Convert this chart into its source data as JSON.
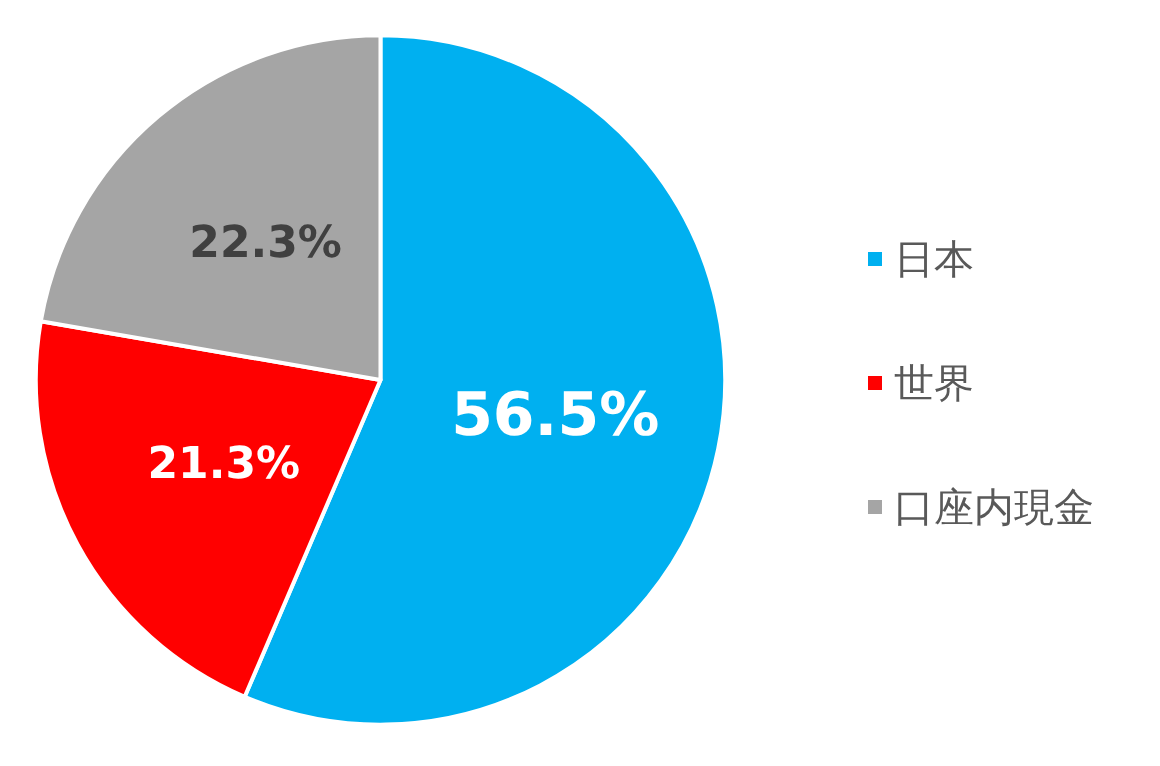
{
  "chart_data": {
    "type": "pie",
    "categories": [
      "日本",
      "世界",
      "口座内現金"
    ],
    "values": [
      56.5,
      21.3,
      22.3
    ],
    "colors": [
      "#00b0f0",
      "#ff0000",
      "#a5a5a5"
    ],
    "value_labels": [
      "56.5%",
      "21.3%",
      "22.3%"
    ],
    "legend": "right"
  }
}
